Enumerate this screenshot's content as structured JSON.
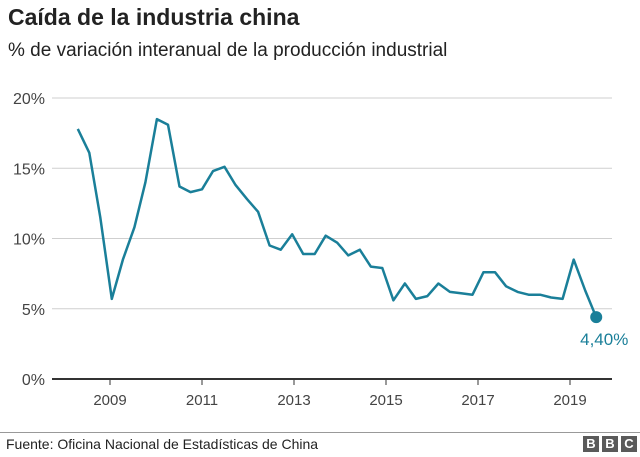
{
  "chart_data": {
    "type": "line",
    "title": "Caída de la industria china",
    "subtitle": "% de variación interanual de la producción industrial",
    "xlabel": "",
    "ylabel": "",
    "ylim": [
      0,
      20
    ],
    "yticks": [
      "0%",
      "5%",
      "10%",
      "15%",
      "20%"
    ],
    "ytick_values": [
      0,
      5,
      10,
      15,
      20
    ],
    "xticks": [
      "2009",
      "2011",
      "2013",
      "2015",
      "2017",
      "2019"
    ],
    "xtick_values": [
      2009,
      2011,
      2013,
      2015,
      2017,
      2019
    ],
    "grid": true,
    "color": "#1a7f99",
    "x": [
      2008.3,
      2008.55,
      2008.79,
      2009.04,
      2009.28,
      2009.53,
      2009.77,
      2010.02,
      2010.26,
      2010.51,
      2010.75,
      2011.0,
      2011.24,
      2011.49,
      2011.73,
      2011.98,
      2012.22,
      2012.47,
      2012.71,
      2012.96,
      2013.2,
      2013.45,
      2013.69,
      2013.94,
      2014.18,
      2014.43,
      2014.67,
      2014.92,
      2015.16,
      2015.41,
      2015.65,
      2015.9,
      2016.14,
      2016.39,
      2016.63,
      2016.88,
      2017.12,
      2017.37,
      2017.61,
      2017.86,
      2018.1,
      2018.35,
      2018.59,
      2018.84,
      2019.08,
      2019.33,
      2019.57
    ],
    "values": [
      17.8,
      16.1,
      11.5,
      5.7,
      8.5,
      10.8,
      14.0,
      18.5,
      18.1,
      13.7,
      13.3,
      13.5,
      14.8,
      15.1,
      13.8,
      12.8,
      11.9,
      9.5,
      9.2,
      10.3,
      8.9,
      8.9,
      10.2,
      9.7,
      8.8,
      9.2,
      8.0,
      7.9,
      5.6,
      6.8,
      5.7,
      5.9,
      6.8,
      6.2,
      6.1,
      6.0,
      7.6,
      7.6,
      6.6,
      6.2,
      6.0,
      6.0,
      5.8,
      5.7,
      8.5,
      6.3,
      4.4
    ],
    "annotation": "4,40%"
  },
  "footer": {
    "source": "Fuente: Oficina Nacional de Estadísticas de China",
    "logo": "BBC"
  }
}
